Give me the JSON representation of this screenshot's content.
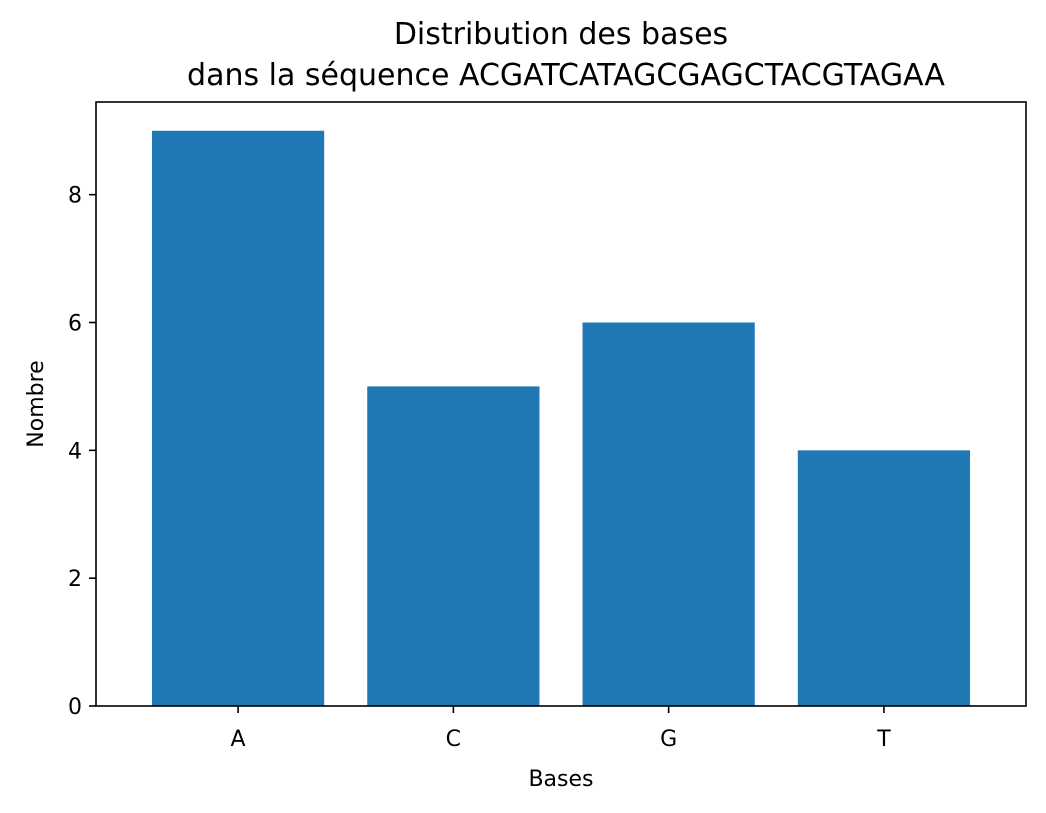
{
  "chart_data": {
    "type": "bar",
    "title_lines": [
      "Distribution des bases",
      "dans la séquence ACGATCATAGCGAGCTACGTAGAA"
    ],
    "xlabel": "Bases",
    "ylabel": "Nombre",
    "categories": [
      "A",
      "C",
      "G",
      "T"
    ],
    "values": [
      9,
      5,
      6,
      4
    ],
    "yticks": [
      0,
      2,
      4,
      6,
      8
    ],
    "ylim": [
      0,
      9.45
    ],
    "grid": false,
    "bar_color": "#1f77b4"
  }
}
